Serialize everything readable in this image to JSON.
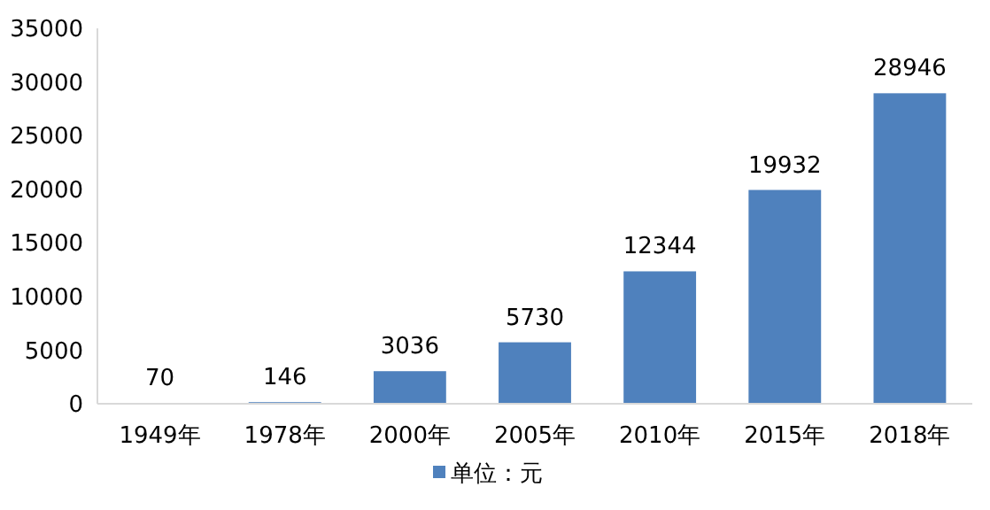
{
  "chart_data": {
    "type": "bar",
    "categories": [
      "1949年",
      "1978年",
      "2000年",
      "2005年",
      "2010年",
      "2015年",
      "2018年"
    ],
    "series": [
      {
        "name": "单位：元",
        "color": "#4f81bd",
        "values": [
          70,
          146,
          3036,
          5730,
          12344,
          19932,
          28946
        ]
      }
    ],
    "ylim": [
      0,
      35000
    ],
    "yticks": [
      0,
      5000,
      10000,
      15000,
      20000,
      25000,
      30000,
      35000
    ],
    "grid": false,
    "legend": "bottom",
    "data_labels": true
  }
}
